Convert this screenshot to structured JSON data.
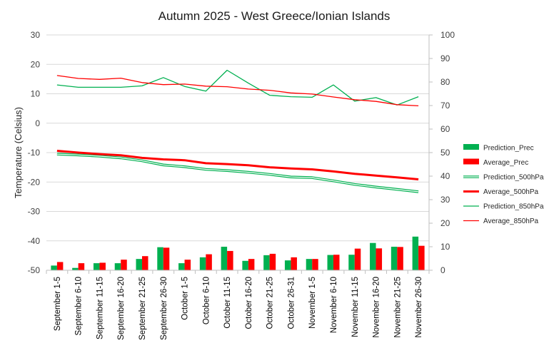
{
  "chart_data": {
    "type": "bar",
    "title": "Autumn 2025 - West Greece/Ionian Islands",
    "ylabel": "Temperature (Celsius)",
    "y_left_range": [
      -50,
      30
    ],
    "y_left_ticks": [
      "30",
      "20",
      "10",
      "0",
      "-10",
      "-20",
      "-30",
      "-40",
      "-50"
    ],
    "y_left_tick_values": [
      30,
      20,
      10,
      0,
      -10,
      -20,
      -30,
      -40,
      -50
    ],
    "y_right_range": [
      0,
      100
    ],
    "y_right_ticks": [
      "100",
      "90",
      "80",
      "70",
      "60",
      "50",
      "40",
      "30",
      "20",
      "10",
      "0"
    ],
    "y_right_tick_values": [
      100,
      90,
      80,
      70,
      60,
      50,
      40,
      30,
      20,
      10,
      0
    ],
    "grid": true,
    "legend_position": "right",
    "categories": [
      "September 1-5",
      "September 6-10",
      "September 11-15",
      "September 16-20",
      "September 21-25",
      "September 26-30",
      "October 1-5",
      "October 6-10",
      "October 11-15",
      "October 16-20",
      "October 21-25",
      "October 26-31",
      "November 1-5",
      "November 6-10",
      "November 11-15",
      "November 16-20",
      "November 21-25",
      "November 26-30"
    ],
    "series": [
      {
        "name": "Prediction_Prec",
        "kind": "bar",
        "axis": "right",
        "color": "#00b050",
        "values": [
          2.0,
          1.0,
          3.0,
          3.0,
          4.8,
          9.8,
          3.0,
          5.5,
          10.0,
          4.0,
          6.4,
          4.2,
          4.8,
          6.5,
          6.6,
          11.6,
          10.0,
          14.3
        ]
      },
      {
        "name": "Average_Prec",
        "kind": "bar",
        "axis": "right",
        "color": "#ff0000",
        "values": [
          3.5,
          3.0,
          3.2,
          4.5,
          6.0,
          9.6,
          4.5,
          6.8,
          8.2,
          4.8,
          7.0,
          5.5,
          4.8,
          6.6,
          9.2,
          9.3,
          9.9,
          10.4
        ]
      },
      {
        "name": "Prediction_500hPa",
        "kind": "line",
        "axis": "left",
        "color": "#00b050",
        "style": "double",
        "values": [
          -10.5,
          -10.8,
          -11.2,
          -11.8,
          -12.8,
          -14.2,
          -14.8,
          -15.7,
          -16.1,
          -16.7,
          -17.4,
          -18.3,
          -18.5,
          -19.6,
          -20.8,
          -21.7,
          -22.5,
          -23.3
        ]
      },
      {
        "name": "Average_500hPa",
        "kind": "line",
        "axis": "left",
        "color": "#ff0000",
        "style": "thick",
        "values": [
          -9.4,
          -10.0,
          -10.5,
          -10.9,
          -11.8,
          -12.3,
          -12.6,
          -13.6,
          -13.9,
          -14.3,
          -15.0,
          -15.4,
          -15.7,
          -16.4,
          -17.2,
          -17.8,
          -18.4,
          -19.1
        ]
      },
      {
        "name": "Prediction_850hPa",
        "kind": "line",
        "axis": "left",
        "color": "#00b050",
        "style": "thin",
        "values": [
          13.0,
          12.2,
          12.2,
          12.2,
          12.7,
          15.5,
          12.5,
          10.9,
          18.0,
          13.6,
          9.5,
          9.0,
          8.8,
          13.0,
          7.5,
          8.7,
          6.2,
          9.0
        ]
      },
      {
        "name": "Average_850hPa",
        "kind": "line",
        "axis": "left",
        "color": "#ff0000",
        "style": "thin",
        "values": [
          16.2,
          15.2,
          14.9,
          15.3,
          13.8,
          13.1,
          13.3,
          12.6,
          12.4,
          11.6,
          11.2,
          10.3,
          9.9,
          8.9,
          8.0,
          7.4,
          6.3,
          5.9
        ]
      }
    ]
  }
}
